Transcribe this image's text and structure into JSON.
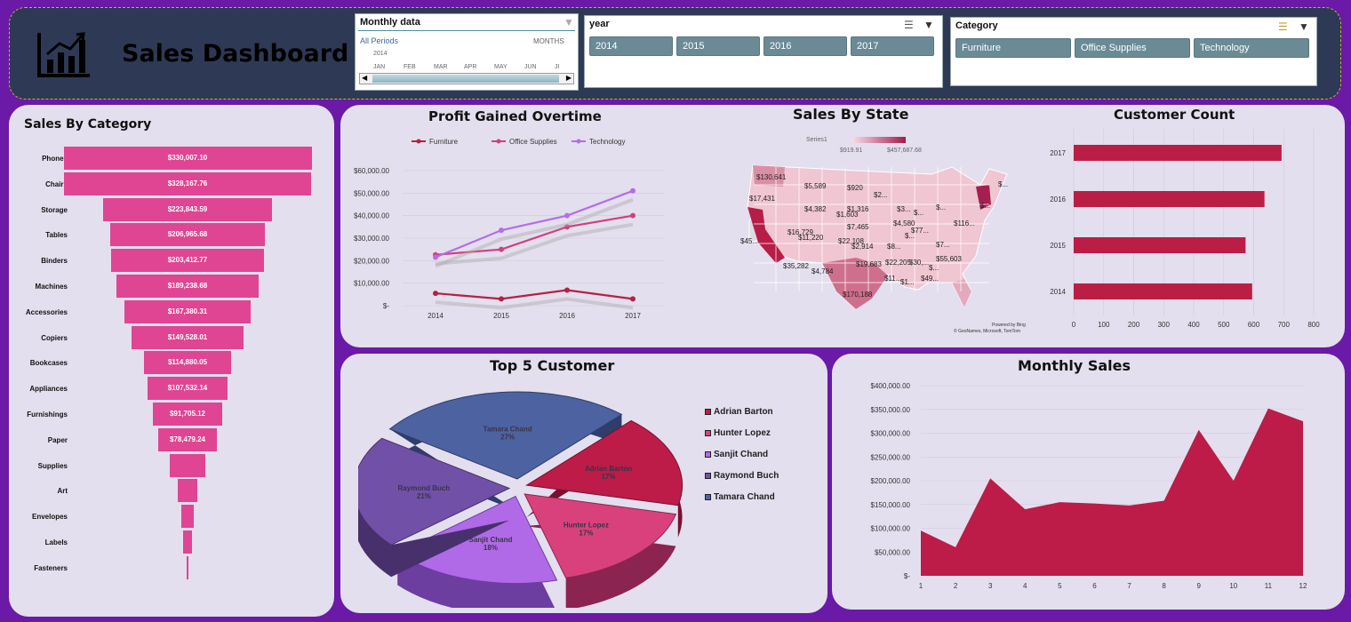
{
  "header": {
    "title": "Sales Dashboard",
    "icon": "bar-chart-icon",
    "timeline": {
      "title": "Monthly  data",
      "period_label": "All Periods",
      "unit_label": "MONTHS",
      "year": "2014",
      "months": [
        "JAN",
        "FEB",
        "MAR",
        "APR",
        "MAY",
        "JUN",
        "JI"
      ]
    },
    "year_slicer": {
      "title": "year",
      "items": [
        "2014",
        "2015",
        "2016",
        "2017"
      ]
    },
    "category_slicer": {
      "title": "Category",
      "items": [
        "Furniture",
        "Office Supplies",
        "Technology"
      ]
    }
  },
  "colors": {
    "pink": "#df4592",
    "crimson": "#bb1e45",
    "furniture": "#b71f44",
    "office": "#d23f7e",
    "technology": "#b46de8"
  },
  "chart_data": [
    {
      "id": "sales_by_category",
      "type": "bar",
      "title": "Sales By Category",
      "categories": [
        "Phones",
        "Chairs",
        "Storage",
        "Tables",
        "Binders",
        "Machines",
        "Accessories",
        "Copiers",
        "Bookcases",
        "Appliances",
        "Furnishings",
        "Paper",
        "Supplies",
        "Art",
        "Envelopes",
        "Labels",
        "Fasteners"
      ],
      "values": [
        330007.1,
        328167.76,
        223843.59,
        206965.68,
        203412.77,
        189238.68,
        167380.31,
        149528.01,
        114880.05,
        107532.14,
        91705.12,
        78479.24,
        46673.54,
        27118.79,
        16476.4,
        12486.31,
        3024.28
      ],
      "labels": [
        "$330,007.10",
        "$328,167.76",
        "$223,843.59",
        "$206,965.68",
        "$203,412.77",
        "$189,238.68",
        "$167,380.31",
        "$149,528.01",
        "$114,880.05",
        "$107,532.14",
        "$91,705.12",
        "$78,479.24",
        "",
        "",
        "",
        "",
        ""
      ]
    },
    {
      "id": "profit_overtime",
      "type": "line",
      "title": "Profit Gained Overtime",
      "x": [
        "2014",
        "2015",
        "2016",
        "2017"
      ],
      "yticks": [
        "$60,000.00",
        "$50,000.00",
        "$40,000.00",
        "$30,000.00",
        "$20,000.00",
        "$10,000.00",
        "$-"
      ],
      "ylim": [
        0,
        60000
      ],
      "series": [
        {
          "name": "Furniture",
          "values": [
            5500,
            3000,
            6900,
            3000
          ]
        },
        {
          "name": "Office Supplies",
          "values": [
            22600,
            25000,
            35000,
            40000
          ]
        },
        {
          "name": "Technology",
          "values": [
            21500,
            33500,
            40000,
            51000
          ]
        }
      ]
    },
    {
      "id": "sales_by_state",
      "type": "map",
      "title": "Sales By State",
      "legend_series": "Series1",
      "legend_min": "$919.91",
      "legend_max": "$457,687.68",
      "labels": [
        "$130,641",
        "$17,431",
        "$5,589",
        "$920",
        "$2...",
        "$3...",
        "$4,382",
        "$1,603",
        "$1,316",
        "$4,580",
        "$16,729",
        "$11,220",
        "$22,108",
        "$7,465",
        "$2,914",
        "$8...",
        "$77...",
        "$116...",
        "$45...",
        "$35,282",
        "$4,784",
        "$19,683",
        "$22,205",
        "$30,...",
        "$55,603",
        "$7...",
        "$170,188",
        "$11...",
        "$1...",
        "$49...",
        "$...",
        "$...",
        "$...",
        "$...",
        "$...",
        "$..."
      ],
      "credit_1": "Powered by Bing",
      "credit_2": "© GeoNames, Microsoft, TomTom"
    },
    {
      "id": "customer_count",
      "type": "bar",
      "title": "Customer Count",
      "categories": [
        "2017",
        "2016",
        "2015",
        "2014"
      ],
      "values": [
        693,
        636,
        573,
        595
      ],
      "xticks": [
        "0",
        "100",
        "200",
        "300",
        "400",
        "500",
        "600",
        "700",
        "800"
      ],
      "xlim": [
        0,
        800
      ]
    },
    {
      "id": "top5_customers",
      "type": "pie",
      "title": "Top 5 Customer",
      "slices": [
        {
          "name": "Tamara Chand",
          "value": 27,
          "label": "27%"
        },
        {
          "name": "Adrian Barton",
          "value": 17,
          "label": "17%"
        },
        {
          "name": "Hunter Lopez",
          "value": 17,
          "label": "17%"
        },
        {
          "name": "Sanjit Chand",
          "value": 18,
          "label": "18%"
        },
        {
          "name": "Raymond Buch",
          "value": 21,
          "label": "21%"
        }
      ],
      "legend": [
        "Adrian Barton",
        "Hunter Lopez",
        "Sanjit Chand",
        "Raymond Buch",
        "Tamara Chand"
      ]
    },
    {
      "id": "monthly_sales",
      "type": "area",
      "title": "Monthly Sales",
      "x": [
        "1",
        "2",
        "3",
        "4",
        "5",
        "6",
        "7",
        "8",
        "9",
        "10",
        "11",
        "12"
      ],
      "values": [
        95000,
        60000,
        205000,
        140000,
        155000,
        152000,
        148000,
        158000,
        307000,
        200000,
        352000,
        325000
      ],
      "yticks": [
        "$400,000.00",
        "$350,000.00",
        "$300,000.00",
        "$250,000.00",
        "$200,000.00",
        "$150,000.00",
        "$100,000.00",
        "$50,000.00",
        "$-"
      ],
      "ylim": [
        0,
        400000
      ]
    }
  ]
}
